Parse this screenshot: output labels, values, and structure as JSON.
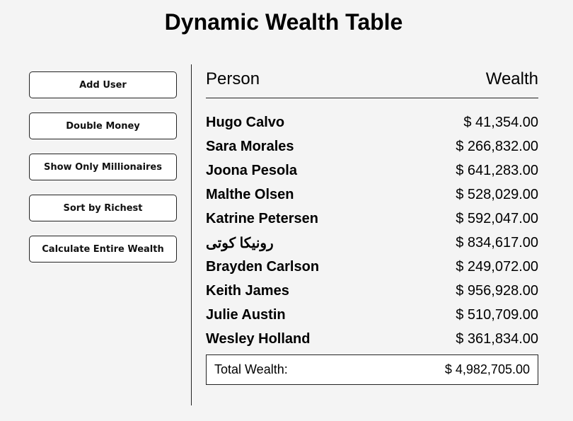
{
  "page": {
    "title": "Dynamic Wealth Table"
  },
  "sidebar": {
    "buttons": [
      {
        "label": "Add User"
      },
      {
        "label": "Double Money"
      },
      {
        "label": "Show Only Millionaires"
      },
      {
        "label": "Sort by Richest"
      },
      {
        "label": "Calculate Entire Wealth"
      }
    ]
  },
  "table": {
    "headers": {
      "person": "Person",
      "wealth": "Wealth"
    },
    "rows": [
      {
        "name": "Hugo Calvo",
        "wealth": "$ 41,354.00"
      },
      {
        "name": "Sara Morales",
        "wealth": "$ 266,832.00"
      },
      {
        "name": "Joona Pesola",
        "wealth": "$ 641,283.00"
      },
      {
        "name": "Malthe Olsen",
        "wealth": "$ 528,029.00"
      },
      {
        "name": "Katrine Petersen",
        "wealth": "$ 592,047.00"
      },
      {
        "name": "رونیکا کوتی",
        "wealth": "$ 834,617.00"
      },
      {
        "name": "Brayden Carlson",
        "wealth": "$ 249,072.00"
      },
      {
        "name": "Keith James",
        "wealth": "$ 956,928.00"
      },
      {
        "name": "Julie Austin",
        "wealth": "$ 510,709.00"
      },
      {
        "name": "Wesley Holland",
        "wealth": "$ 361,834.00"
      }
    ],
    "total": {
      "label": "Total Wealth:",
      "value": "$ 4,982,705.00"
    }
  }
}
